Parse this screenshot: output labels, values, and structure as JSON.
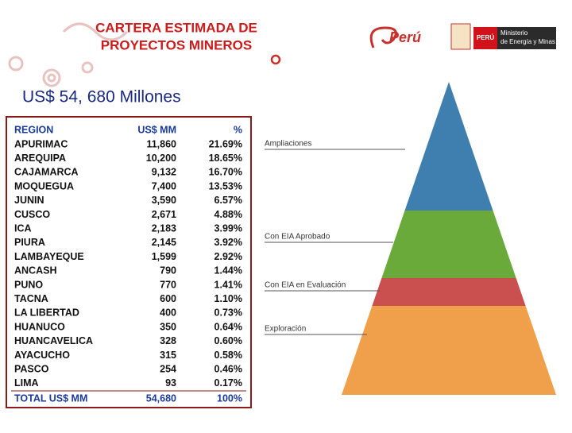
{
  "header": {
    "title_line1": "CARTERA ESTIMADA DE",
    "title_line2": "PROYECTOS MINEROS",
    "subtitle": "US$ 54, 680 Millones",
    "brand": "Perú",
    "badge": "PERÚ",
    "ministry_line1": "Ministerio",
    "ministry_line2": "de Energía y Minas"
  },
  "table": {
    "columns": [
      "REGION",
      "US$ MM",
      "%"
    ],
    "rows": [
      [
        "APURIMAC",
        "11,860",
        "21.69%"
      ],
      [
        "AREQUIPA",
        "10,200",
        "18.65%"
      ],
      [
        "CAJAMARCA",
        "9,132",
        "16.70%"
      ],
      [
        "MOQUEGUA",
        "7,400",
        "13.53%"
      ],
      [
        "JUNIN",
        "3,590",
        "6.57%"
      ],
      [
        "CUSCO",
        "2,671",
        "4.88%"
      ],
      [
        "ICA",
        "2,183",
        "3.99%"
      ],
      [
        "PIURA",
        "2,145",
        "3.92%"
      ],
      [
        "LAMBAYEQUE",
        "1,599",
        "2.92%"
      ],
      [
        "ANCASH",
        "790",
        "1.44%"
      ],
      [
        "PUNO",
        "770",
        "1.41%"
      ],
      [
        "TACNA",
        "600",
        "1.10%"
      ],
      [
        "LA LIBERTAD",
        "400",
        "0.73%"
      ],
      [
        "HUANUCO",
        "350",
        "0.64%"
      ],
      [
        "HUANCAVELICA",
        "328",
        "0.60%"
      ],
      [
        "AYACUCHO",
        "315",
        "0.58%"
      ],
      [
        "PASCO",
        "254",
        "0.46%"
      ],
      [
        "LIMA",
        "93",
        "0.17%"
      ]
    ],
    "total": [
      "TOTAL US$ MM",
      "54,680",
      "100%"
    ]
  },
  "pyramid": {
    "levels": [
      "Ampliaciones",
      "Con EIA Aprobado",
      "Con EIA en Evaluación",
      "Exploración"
    ]
  }
}
